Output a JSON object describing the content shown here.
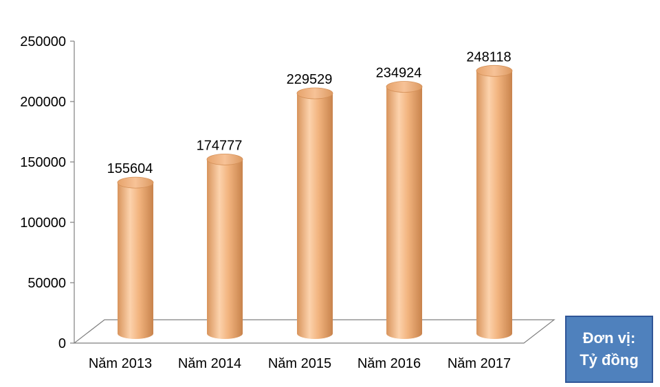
{
  "chart_data": {
    "type": "bar",
    "style": "3d-cylinder",
    "categories": [
      "Năm 2013",
      "Năm 2014",
      "Năm 2015",
      "Năm 2016",
      "Năm 2017"
    ],
    "values": [
      155604,
      174777,
      229529,
      234924,
      248118
    ],
    "data_labels": [
      "155604",
      "174777",
      "229529",
      "234924",
      "248118"
    ],
    "yticks": [
      "0",
      "50000",
      "100000",
      "150000",
      "200000",
      "250000"
    ],
    "ylim": [
      0,
      250000
    ],
    "grid": false,
    "bar_color": "#f2b47f"
  },
  "unit_note": {
    "line1": "Đơn vị:",
    "line2": "Tỷ đồng"
  }
}
